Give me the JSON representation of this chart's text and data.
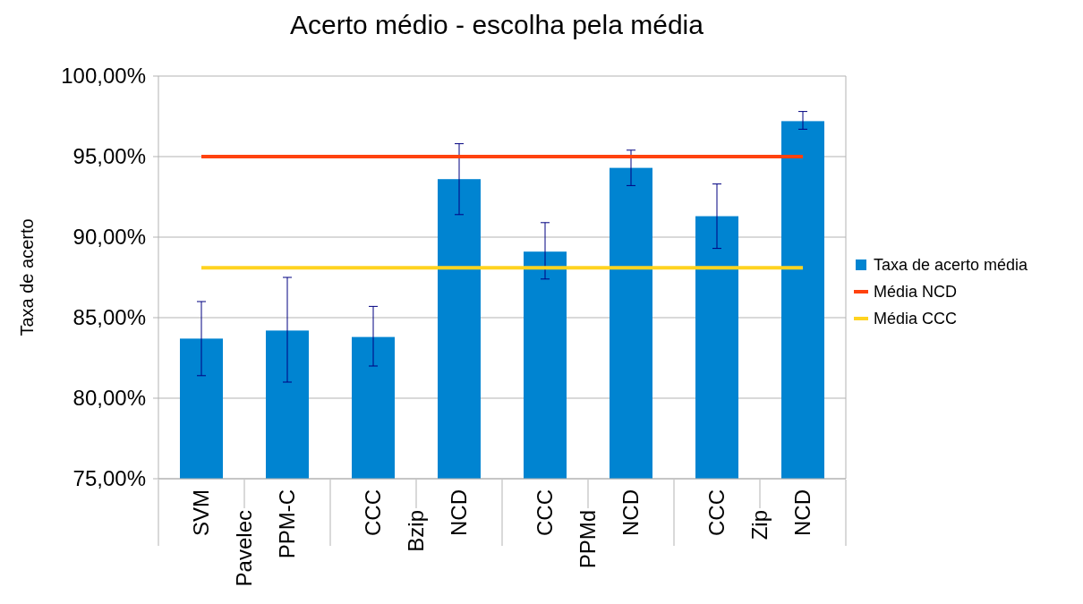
{
  "chart_data": {
    "type": "bar",
    "title": "Acerto médio - escolha pela média",
    "ylabel": "Taxa de acerto",
    "categories": [
      "SVM",
      "PPM-C",
      "CCC",
      "NCD",
      "CCC",
      "NCD",
      "CCC",
      "NCD"
    ],
    "series": [
      {
        "name": "Taxa de acerto média",
        "color": "#0084d1",
        "values": [
          83.7,
          84.2,
          83.8,
          93.6,
          89.1,
          94.3,
          91.3,
          97.2
        ],
        "errors": [
          [
            81.4,
            86.0
          ],
          [
            81.0,
            87.5
          ],
          [
            82.0,
            85.7
          ],
          [
            91.4,
            95.8
          ],
          [
            87.4,
            90.9
          ],
          [
            93.2,
            95.4
          ],
          [
            89.3,
            93.3
          ],
          [
            96.7,
            97.8
          ]
        ]
      },
      {
        "name": "Média NCD",
        "type": "line",
        "color": "#ff420e",
        "values": [
          95.0,
          95.0,
          95.0,
          95.0,
          95.0,
          95.0,
          95.0,
          95.0
        ]
      },
      {
        "name": "Média CCC",
        "type": "line",
        "color": "#ffd320",
        "values": [
          88.1,
          88.1,
          88.1,
          88.1,
          88.1,
          88.1,
          88.1,
          88.1
        ]
      }
    ],
    "annotations": [
      "Pavelec",
      "Bzip",
      "PPMd",
      "Zip"
    ],
    "ylim": [
      75,
      100
    ],
    "yticks": [
      {
        "value": 75,
        "label": "75,00%"
      },
      {
        "value": 80,
        "label": "80,00%"
      },
      {
        "value": 85,
        "label": "85,00%"
      },
      {
        "value": 90,
        "label": "90,00%"
      },
      {
        "value": 95,
        "label": "95,00%"
      },
      {
        "value": 100,
        "label": "100,00%"
      }
    ],
    "grid": "y",
    "legend": "right",
    "marker": "none"
  }
}
